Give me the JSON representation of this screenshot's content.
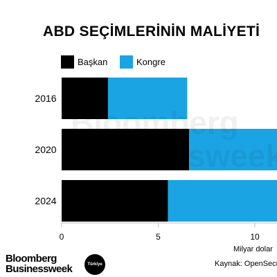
{
  "title": "ABD SEÇİMLERİNİN MALİYETİ",
  "legend": [
    {
      "label": "Başkan",
      "color": "#000000"
    },
    {
      "label": "Kongre",
      "color": "#1ba4e3"
    }
  ],
  "watermark": {
    "line1": "Bloomberg",
    "line2": "Businessweek"
  },
  "xlabel": "Milyar dolar",
  "source": "Kaynak: OpenSecrets",
  "logo": {
    "line1": "Bloomberg",
    "line2": "Businessweek",
    "badge": "Türkiye"
  },
  "chart_data": {
    "type": "bar",
    "orientation": "horizontal",
    "stacked": true,
    "categories": [
      "2016",
      "2020",
      "2024"
    ],
    "series": [
      {
        "name": "Başkan",
        "values": [
          2.4,
          6.6,
          5.5
        ],
        "color": "#000000"
      },
      {
        "name": "Kongre",
        "values": [
          4.1,
          7.6,
          10.0
        ],
        "color": "#1ba4e3"
      }
    ],
    "xticks": [
      0,
      5,
      10
    ],
    "xlim": [
      0,
      15
    ],
    "xlabel": "Milyar dolar",
    "grid": false
  }
}
